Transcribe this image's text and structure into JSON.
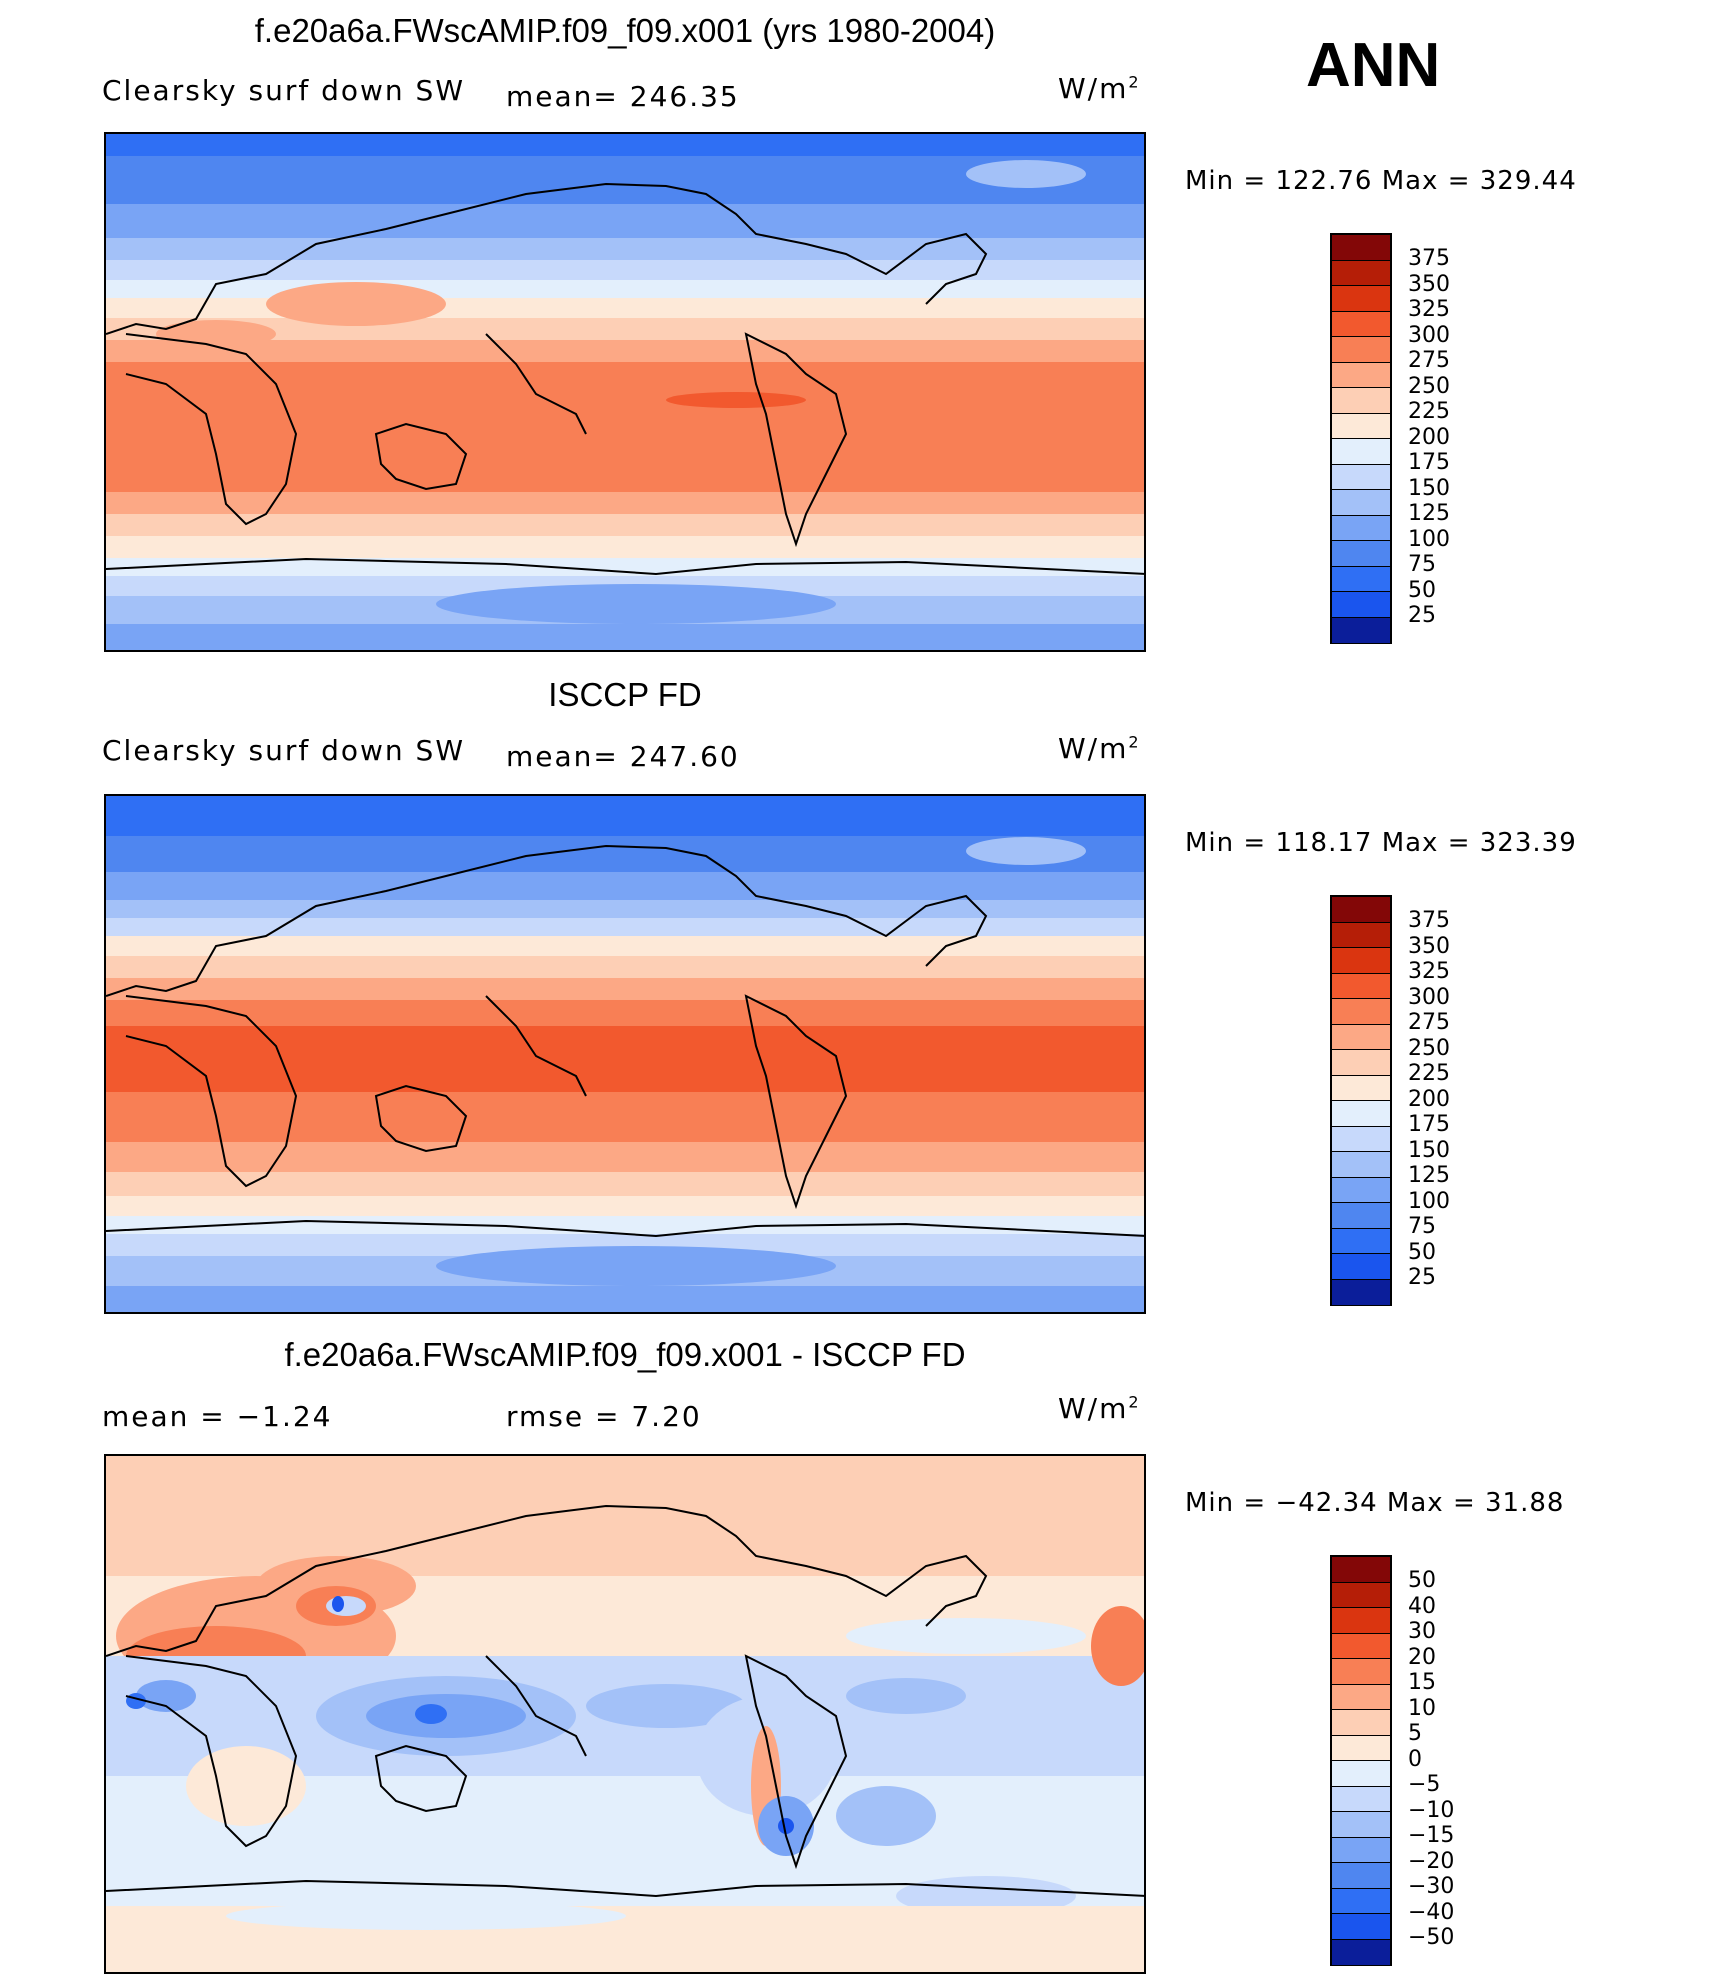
{
  "season": "ANN",
  "colors": {
    "abs_scale": [
      "#08086b",
      "#0b1e9a",
      "#1236c8",
      "#1a55ee",
      "#2f6ff4",
      "#4f86f0",
      "#79a4f5",
      "#a3c1f8",
      "#c7d9fb",
      "#e3effc",
      "#fde9d8",
      "#fdcfb5",
      "#fca885",
      "#f87f55",
      "#f2592e",
      "#da3510",
      "#b51e07",
      "#830707"
    ],
    "diff_scale": [
      "#08086b",
      "#0b1e9a",
      "#1236c8",
      "#1a55ee",
      "#2f6ff4",
      "#4f86f0",
      "#79a4f5",
      "#a3c1f8",
      "#c7d9fb",
      "#e3effc",
      "#fde9d8",
      "#fdcfb5",
      "#fca885",
      "#f87f55",
      "#f2592e",
      "#da3510",
      "#b51e07",
      "#830707"
    ]
  },
  "panels": [
    {
      "title": "f.e20a6a.FWscAMIP.f09_f09.x001 (yrs 1980-2004)",
      "left_label": "Clearsky surf down SW",
      "mid_label": "mean=  246.35",
      "units": "W/m",
      "units_sup": "2",
      "minmax": "Min  =  122.76  Max  =  329.44",
      "levels": [
        "375",
        "350",
        "325",
        "300",
        "275",
        "250",
        "225",
        "200",
        "175",
        "150",
        "125",
        "100",
        "75",
        "50",
        "25"
      ]
    },
    {
      "title": "ISCCP FD",
      "left_label": "Clearsky surf down SW",
      "mid_label": "mean=  247.60",
      "units": "W/m",
      "units_sup": "2",
      "minmax": "Min  =  118.17  Max  =  323.39",
      "levels": [
        "375",
        "350",
        "325",
        "300",
        "275",
        "250",
        "225",
        "200",
        "175",
        "150",
        "125",
        "100",
        "75",
        "50",
        "25"
      ]
    },
    {
      "title": "f.e20a6a.FWscAMIP.f09_f09.x001 - ISCCP FD",
      "left_label": "mean  =    −1.24",
      "mid_label": "rmse  =     7.20",
      "units": "W/m",
      "units_sup": "2",
      "minmax": "Min  =  −42.34  Max  =    31.88",
      "levels": [
        "50",
        "40",
        "30",
        "20",
        "15",
        "10",
        "5",
        "0",
        "−5",
        "−10",
        "−15",
        "−20",
        "−30",
        "−40",
        "−50"
      ]
    }
  ]
}
